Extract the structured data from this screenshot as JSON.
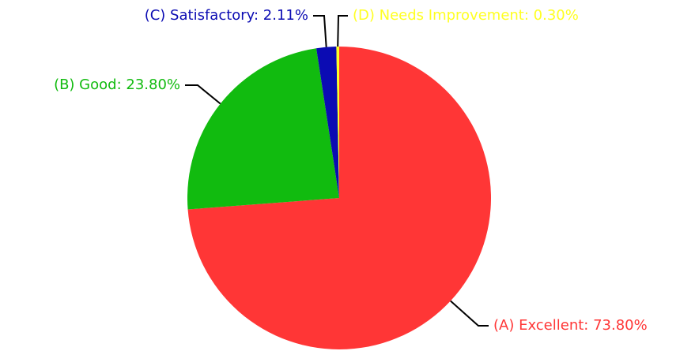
{
  "chart_data": {
    "type": "pie",
    "values": [
      73.8,
      23.8,
      2.11,
      0.3
    ],
    "value_labels": [
      "(A) Excellent: 73.80%",
      "(B) Good: 23.80%",
      "(C) Satisfactory: 2.11%",
      "(D) Needs Improvement: 0.30%"
    ],
    "colors": [
      "#ff3636",
      "#11bb0f",
      "#0b0bb3",
      "#ffff22"
    ]
  }
}
